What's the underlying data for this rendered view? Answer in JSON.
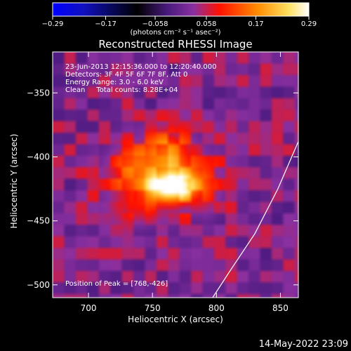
{
  "chart_data": {
    "type": "heatmap",
    "title": "Reconstructed RHESSI Image",
    "xlabel": "Heliocentric X (arcsec)",
    "ylabel": "Heliocentric Y (arcsec)",
    "xlim": [
      672,
      864
    ],
    "ylim": [
      -510,
      -318
    ],
    "x_ticks": [
      "700",
      "750",
      "800",
      "850"
    ],
    "x_tick_values": [
      700,
      750,
      800,
      850
    ],
    "y_ticks": [
      "-350",
      "-400",
      "-450",
      "-500"
    ],
    "y_tick_values": [
      -350,
      -400,
      -450,
      -500
    ],
    "colorbar": {
      "ticks": [
        "-0.29",
        "-0.17",
        "-0.058",
        "0.058",
        "0.17",
        "0.29"
      ],
      "tick_values": [
        -0.29,
        -0.17,
        -0.058,
        0.058,
        0.17,
        0.29
      ],
      "range": [
        -0.29,
        0.29
      ],
      "label": "(photons cm⁻² s⁻¹ asec⁻²)",
      "colors": [
        "#0000ff",
        "#000000",
        "#6a2fa0",
        "#ff2000",
        "#ffb000",
        "#ffffff"
      ]
    },
    "annotations": [
      "23-Jun-2013 12:15:36.000 to 12:20:40.000",
      "Detectors: 3F 4F 5F 6F 7F 8F, Att 0",
      "Energy Range: 3.0 - 6.0 keV",
      "Clean     Total counts: 8.28E+04"
    ],
    "peak_label": "Position of Peak = [768,-426]",
    "peak_position": [
      768,
      -426
    ],
    "limb_curve": [
      [
        797,
        -510
      ],
      [
        810,
        -490
      ],
      [
        830,
        -460
      ],
      [
        848,
        -425
      ],
      [
        864,
        -388
      ]
    ],
    "sources": [
      {
        "x": 765,
        "y": -423,
        "amp": 0.27,
        "sx": 12,
        "sy": 8
      },
      {
        "x": 755,
        "y": -412,
        "amp": 0.12,
        "sx": 26,
        "sy": 20
      },
      {
        "x": 762,
        "y": -395,
        "amp": 0.08,
        "sx": 10,
        "sy": 10
      },
      {
        "x": 738,
        "y": -440,
        "amp": 0.06,
        "sx": 12,
        "sy": 10
      },
      {
        "x": 790,
        "y": -430,
        "amp": 0.05,
        "sx": 10,
        "sy": 12
      },
      {
        "x": 730,
        "y": -405,
        "amp": 0.05,
        "sx": 9,
        "sy": 9
      }
    ],
    "background_level": 0.02
  },
  "footer": {
    "timestamp": "14-May-2022 23:09"
  }
}
